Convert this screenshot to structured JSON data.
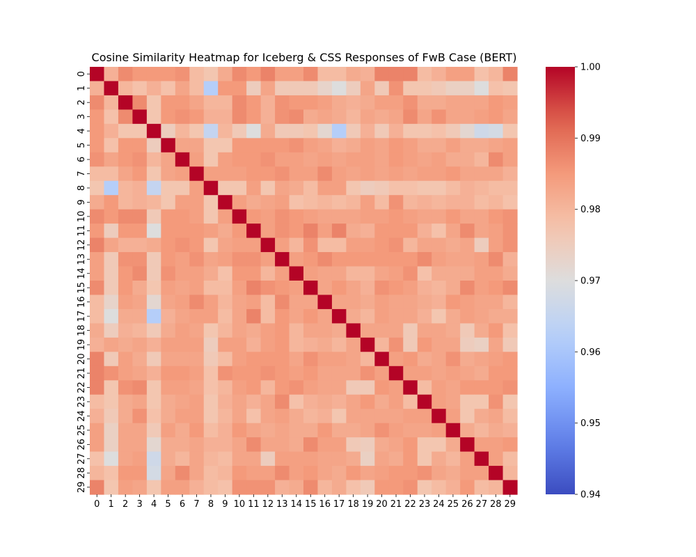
{
  "chart_data": {
    "type": "heatmap",
    "title": "Cosine Similarity Heatmap for Iceberg & CSS Responses of FwB Case (BERT)",
    "xlabel": "",
    "ylabel": "",
    "x_categories": [
      "0",
      "1",
      "2",
      "3",
      "4",
      "5",
      "6",
      "7",
      "8",
      "9",
      "10",
      "11",
      "12",
      "13",
      "14",
      "15",
      "16",
      "17",
      "18",
      "19",
      "20",
      "21",
      "22",
      "23",
      "24",
      "25",
      "26",
      "27",
      "28",
      "29"
    ],
    "y_categories": [
      "0",
      "1",
      "2",
      "3",
      "4",
      "5",
      "6",
      "7",
      "8",
      "9",
      "10",
      "11",
      "12",
      "13",
      "14",
      "15",
      "16",
      "17",
      "18",
      "19",
      "20",
      "21",
      "22",
      "23",
      "24",
      "25",
      "26",
      "27",
      "28",
      "29"
    ],
    "colormap": "coolwarm",
    "vmin": 0.94,
    "vmax": 1.0,
    "colorbar_ticks": [
      "0.94",
      "0.95",
      "0.96",
      "0.97",
      "0.98",
      "0.99",
      "1.00"
    ],
    "values": [
      [
        1.0,
        0.981,
        0.987,
        0.985,
        0.985,
        0.985,
        0.986,
        0.979,
        0.977,
        0.982,
        0.987,
        0.985,
        0.988,
        0.984,
        0.984,
        0.987,
        0.979,
        0.979,
        0.982,
        0.981,
        0.988,
        0.988,
        0.988,
        0.979,
        0.981,
        0.984,
        0.984,
        0.978,
        0.98,
        0.988
      ],
      [
        0.981,
        1.0,
        0.98,
        0.978,
        0.981,
        0.978,
        0.983,
        0.979,
        0.962,
        0.985,
        0.985,
        0.975,
        0.983,
        0.976,
        0.976,
        0.976,
        0.973,
        0.97,
        0.975,
        0.983,
        0.976,
        0.986,
        0.977,
        0.977,
        0.976,
        0.974,
        0.974,
        0.97,
        0.978,
        0.977
      ],
      [
        0.987,
        0.98,
        1.0,
        0.987,
        0.977,
        0.985,
        0.985,
        0.983,
        0.98,
        0.98,
        0.987,
        0.985,
        0.981,
        0.986,
        0.985,
        0.985,
        0.984,
        0.982,
        0.981,
        0.982,
        0.984,
        0.984,
        0.986,
        0.982,
        0.982,
        0.983,
        0.983,
        0.983,
        0.985,
        0.984
      ],
      [
        0.985,
        0.978,
        0.987,
        1.0,
        0.977,
        0.985,
        0.986,
        0.985,
        0.981,
        0.981,
        0.987,
        0.985,
        0.981,
        0.986,
        0.987,
        0.982,
        0.983,
        0.982,
        0.98,
        0.983,
        0.982,
        0.983,
        0.987,
        0.983,
        0.986,
        0.983,
        0.983,
        0.984,
        0.985,
        0.983
      ],
      [
        0.985,
        0.981,
        0.977,
        0.977,
        1.0,
        0.975,
        0.98,
        0.977,
        0.965,
        0.98,
        0.976,
        0.97,
        0.982,
        0.976,
        0.976,
        0.977,
        0.972,
        0.962,
        0.976,
        0.981,
        0.976,
        0.981,
        0.977,
        0.977,
        0.978,
        0.976,
        0.972,
        0.967,
        0.968,
        0.977
      ],
      [
        0.985,
        0.978,
        0.985,
        0.985,
        0.975,
        1.0,
        0.983,
        0.983,
        0.977,
        0.977,
        0.985,
        0.985,
        0.985,
        0.985,
        0.986,
        0.984,
        0.983,
        0.981,
        0.982,
        0.984,
        0.983,
        0.985,
        0.984,
        0.982,
        0.982,
        0.984,
        0.982,
        0.982,
        0.983,
        0.984
      ],
      [
        0.986,
        0.983,
        0.985,
        0.986,
        0.98,
        0.983,
        1.0,
        0.984,
        0.977,
        0.984,
        0.985,
        0.985,
        0.986,
        0.984,
        0.984,
        0.983,
        0.984,
        0.983,
        0.984,
        0.984,
        0.983,
        0.985,
        0.984,
        0.983,
        0.984,
        0.982,
        0.982,
        0.98,
        0.987,
        0.984
      ],
      [
        0.979,
        0.979,
        0.983,
        0.985,
        0.977,
        0.983,
        0.984,
        1.0,
        0.984,
        0.984,
        0.984,
        0.985,
        0.985,
        0.986,
        0.984,
        0.984,
        0.987,
        0.984,
        0.983,
        0.984,
        0.983,
        0.984,
        0.983,
        0.984,
        0.984,
        0.985,
        0.983,
        0.983,
        0.983,
        0.981
      ],
      [
        0.977,
        0.962,
        0.98,
        0.981,
        0.965,
        0.977,
        0.977,
        0.984,
        1.0,
        0.977,
        0.977,
        0.984,
        0.977,
        0.983,
        0.982,
        0.979,
        0.984,
        0.984,
        0.977,
        0.975,
        0.976,
        0.978,
        0.978,
        0.977,
        0.977,
        0.979,
        0.981,
        0.98,
        0.979,
        0.979
      ],
      [
        0.982,
        0.985,
        0.98,
        0.981,
        0.98,
        0.977,
        0.984,
        0.984,
        0.977,
        1.0,
        0.984,
        0.982,
        0.983,
        0.984,
        0.978,
        0.979,
        0.98,
        0.979,
        0.98,
        0.984,
        0.979,
        0.986,
        0.98,
        0.981,
        0.98,
        0.981,
        0.981,
        0.979,
        0.98,
        0.978
      ],
      [
        0.987,
        0.985,
        0.987,
        0.987,
        0.976,
        0.985,
        0.985,
        0.984,
        0.977,
        0.984,
        1.0,
        0.985,
        0.984,
        0.986,
        0.985,
        0.984,
        0.983,
        0.983,
        0.983,
        0.984,
        0.984,
        0.985,
        0.984,
        0.983,
        0.983,
        0.985,
        0.983,
        0.983,
        0.985,
        0.986
      ],
      [
        0.985,
        0.975,
        0.985,
        0.985,
        0.97,
        0.985,
        0.985,
        0.985,
        0.984,
        0.982,
        0.985,
        1.0,
        0.984,
        0.986,
        0.985,
        0.988,
        0.984,
        0.988,
        0.982,
        0.981,
        0.985,
        0.985,
        0.985,
        0.981,
        0.978,
        0.983,
        0.987,
        0.983,
        0.984,
        0.986
      ],
      [
        0.988,
        0.983,
        0.981,
        0.981,
        0.982,
        0.985,
        0.986,
        0.985,
        0.977,
        0.983,
        0.984,
        0.984,
        1.0,
        0.984,
        0.98,
        0.986,
        0.979,
        0.979,
        0.984,
        0.984,
        0.985,
        0.986,
        0.98,
        0.983,
        0.983,
        0.982,
        0.983,
        0.975,
        0.984,
        0.986
      ],
      [
        0.984,
        0.976,
        0.986,
        0.986,
        0.976,
        0.985,
        0.984,
        0.986,
        0.983,
        0.984,
        0.986,
        0.986,
        0.984,
        1.0,
        0.984,
        0.985,
        0.987,
        0.985,
        0.985,
        0.985,
        0.985,
        0.985,
        0.985,
        0.987,
        0.984,
        0.983,
        0.983,
        0.984,
        0.987,
        0.981
      ],
      [
        0.984,
        0.976,
        0.985,
        0.987,
        0.976,
        0.986,
        0.984,
        0.984,
        0.982,
        0.978,
        0.985,
        0.985,
        0.98,
        0.984,
        1.0,
        0.984,
        0.983,
        0.983,
        0.98,
        0.98,
        0.983,
        0.984,
        0.986,
        0.978,
        0.982,
        0.982,
        0.982,
        0.984,
        0.984,
        0.982
      ],
      [
        0.987,
        0.976,
        0.985,
        0.982,
        0.977,
        0.984,
        0.983,
        0.984,
        0.979,
        0.979,
        0.984,
        0.988,
        0.986,
        0.985,
        0.984,
        1.0,
        0.983,
        0.985,
        0.983,
        0.981,
        0.986,
        0.985,
        0.984,
        0.981,
        0.98,
        0.982,
        0.987,
        0.984,
        0.985,
        0.987
      ],
      [
        0.979,
        0.973,
        0.984,
        0.983,
        0.972,
        0.983,
        0.984,
        0.987,
        0.984,
        0.98,
        0.983,
        0.984,
        0.979,
        0.987,
        0.983,
        0.983,
        1.0,
        0.983,
        0.983,
        0.982,
        0.984,
        0.983,
        0.983,
        0.982,
        0.981,
        0.985,
        0.984,
        0.983,
        0.983,
        0.98
      ],
      [
        0.979,
        0.97,
        0.982,
        0.982,
        0.962,
        0.981,
        0.983,
        0.984,
        0.984,
        0.979,
        0.983,
        0.988,
        0.979,
        0.985,
        0.983,
        0.985,
        0.983,
        1.0,
        0.982,
        0.98,
        0.984,
        0.983,
        0.983,
        0.981,
        0.977,
        0.982,
        0.984,
        0.983,
        0.982,
        0.982
      ],
      [
        0.982,
        0.975,
        0.981,
        0.98,
        0.976,
        0.982,
        0.984,
        0.983,
        0.977,
        0.98,
        0.983,
        0.982,
        0.984,
        0.985,
        0.98,
        0.983,
        0.983,
        0.982,
        1.0,
        0.983,
        0.983,
        0.983,
        0.976,
        0.983,
        0.983,
        0.982,
        0.976,
        0.982,
        0.985,
        0.978
      ],
      [
        0.981,
        0.983,
        0.982,
        0.983,
        0.981,
        0.984,
        0.984,
        0.984,
        0.975,
        0.984,
        0.984,
        0.981,
        0.984,
        0.985,
        0.98,
        0.981,
        0.982,
        0.98,
        0.983,
        1.0,
        0.98,
        0.986,
        0.976,
        0.985,
        0.983,
        0.983,
        0.975,
        0.974,
        0.983,
        0.976
      ],
      [
        0.988,
        0.976,
        0.984,
        0.982,
        0.976,
        0.983,
        0.983,
        0.983,
        0.976,
        0.979,
        0.984,
        0.985,
        0.985,
        0.985,
        0.983,
        0.986,
        0.984,
        0.984,
        0.983,
        0.98,
        1.0,
        0.984,
        0.985,
        0.982,
        0.983,
        0.986,
        0.982,
        0.983,
        0.984,
        0.985
      ],
      [
        0.988,
        0.986,
        0.984,
        0.983,
        0.981,
        0.985,
        0.985,
        0.984,
        0.978,
        0.986,
        0.985,
        0.985,
        0.986,
        0.985,
        0.984,
        0.985,
        0.983,
        0.983,
        0.983,
        0.986,
        0.984,
        1.0,
        0.984,
        0.984,
        0.983,
        0.984,
        0.983,
        0.982,
        0.985,
        0.985
      ],
      [
        0.988,
        0.977,
        0.986,
        0.987,
        0.977,
        0.984,
        0.984,
        0.983,
        0.978,
        0.98,
        0.984,
        0.985,
        0.98,
        0.985,
        0.986,
        0.984,
        0.983,
        0.983,
        0.976,
        0.976,
        0.985,
        0.984,
        1.0,
        0.979,
        0.984,
        0.983,
        0.985,
        0.985,
        0.985,
        0.986
      ],
      [
        0.979,
        0.977,
        0.982,
        0.983,
        0.977,
        0.982,
        0.983,
        0.984,
        0.977,
        0.981,
        0.983,
        0.981,
        0.983,
        0.987,
        0.978,
        0.981,
        0.982,
        0.981,
        0.983,
        0.985,
        0.982,
        0.984,
        0.979,
        1.0,
        0.984,
        0.983,
        0.977,
        0.977,
        0.986,
        0.977
      ],
      [
        0.981,
        0.976,
        0.982,
        0.986,
        0.978,
        0.982,
        0.984,
        0.984,
        0.977,
        0.98,
        0.983,
        0.978,
        0.983,
        0.984,
        0.982,
        0.98,
        0.981,
        0.977,
        0.983,
        0.983,
        0.983,
        0.983,
        0.984,
        0.984,
        1.0,
        0.984,
        0.977,
        0.982,
        0.983,
        0.979
      ],
      [
        0.984,
        0.974,
        0.983,
        0.983,
        0.976,
        0.984,
        0.982,
        0.985,
        0.979,
        0.981,
        0.985,
        0.983,
        0.982,
        0.983,
        0.982,
        0.982,
        0.985,
        0.982,
        0.982,
        0.983,
        0.986,
        0.984,
        0.983,
        0.983,
        0.984,
        1.0,
        0.982,
        0.98,
        0.982,
        0.981
      ],
      [
        0.984,
        0.974,
        0.983,
        0.983,
        0.972,
        0.982,
        0.982,
        0.983,
        0.981,
        0.981,
        0.983,
        0.987,
        0.983,
        0.983,
        0.982,
        0.987,
        0.984,
        0.984,
        0.976,
        0.975,
        0.982,
        0.983,
        0.985,
        0.977,
        0.977,
        0.982,
        1.0,
        0.984,
        0.984,
        0.985
      ],
      [
        0.978,
        0.97,
        0.983,
        0.984,
        0.967,
        0.982,
        0.98,
        0.983,
        0.98,
        0.979,
        0.983,
        0.983,
        0.975,
        0.984,
        0.984,
        0.984,
        0.983,
        0.983,
        0.982,
        0.974,
        0.983,
        0.982,
        0.985,
        0.977,
        0.982,
        0.98,
        0.984,
        1.0,
        0.984,
        0.979
      ],
      [
        0.98,
        0.978,
        0.985,
        0.985,
        0.968,
        0.983,
        0.987,
        0.983,
        0.979,
        0.98,
        0.985,
        0.984,
        0.984,
        0.987,
        0.984,
        0.985,
        0.983,
        0.982,
        0.985,
        0.983,
        0.984,
        0.985,
        0.985,
        0.986,
        0.983,
        0.982,
        0.984,
        0.984,
        1.0,
        0.98
      ],
      [
        0.988,
        0.977,
        0.984,
        0.983,
        0.977,
        0.984,
        0.984,
        0.981,
        0.979,
        0.978,
        0.986,
        0.986,
        0.986,
        0.981,
        0.982,
        0.987,
        0.98,
        0.982,
        0.978,
        0.976,
        0.985,
        0.985,
        0.986,
        0.977,
        0.979,
        0.981,
        0.985,
        0.979,
        0.98,
        1.0
      ]
    ]
  }
}
